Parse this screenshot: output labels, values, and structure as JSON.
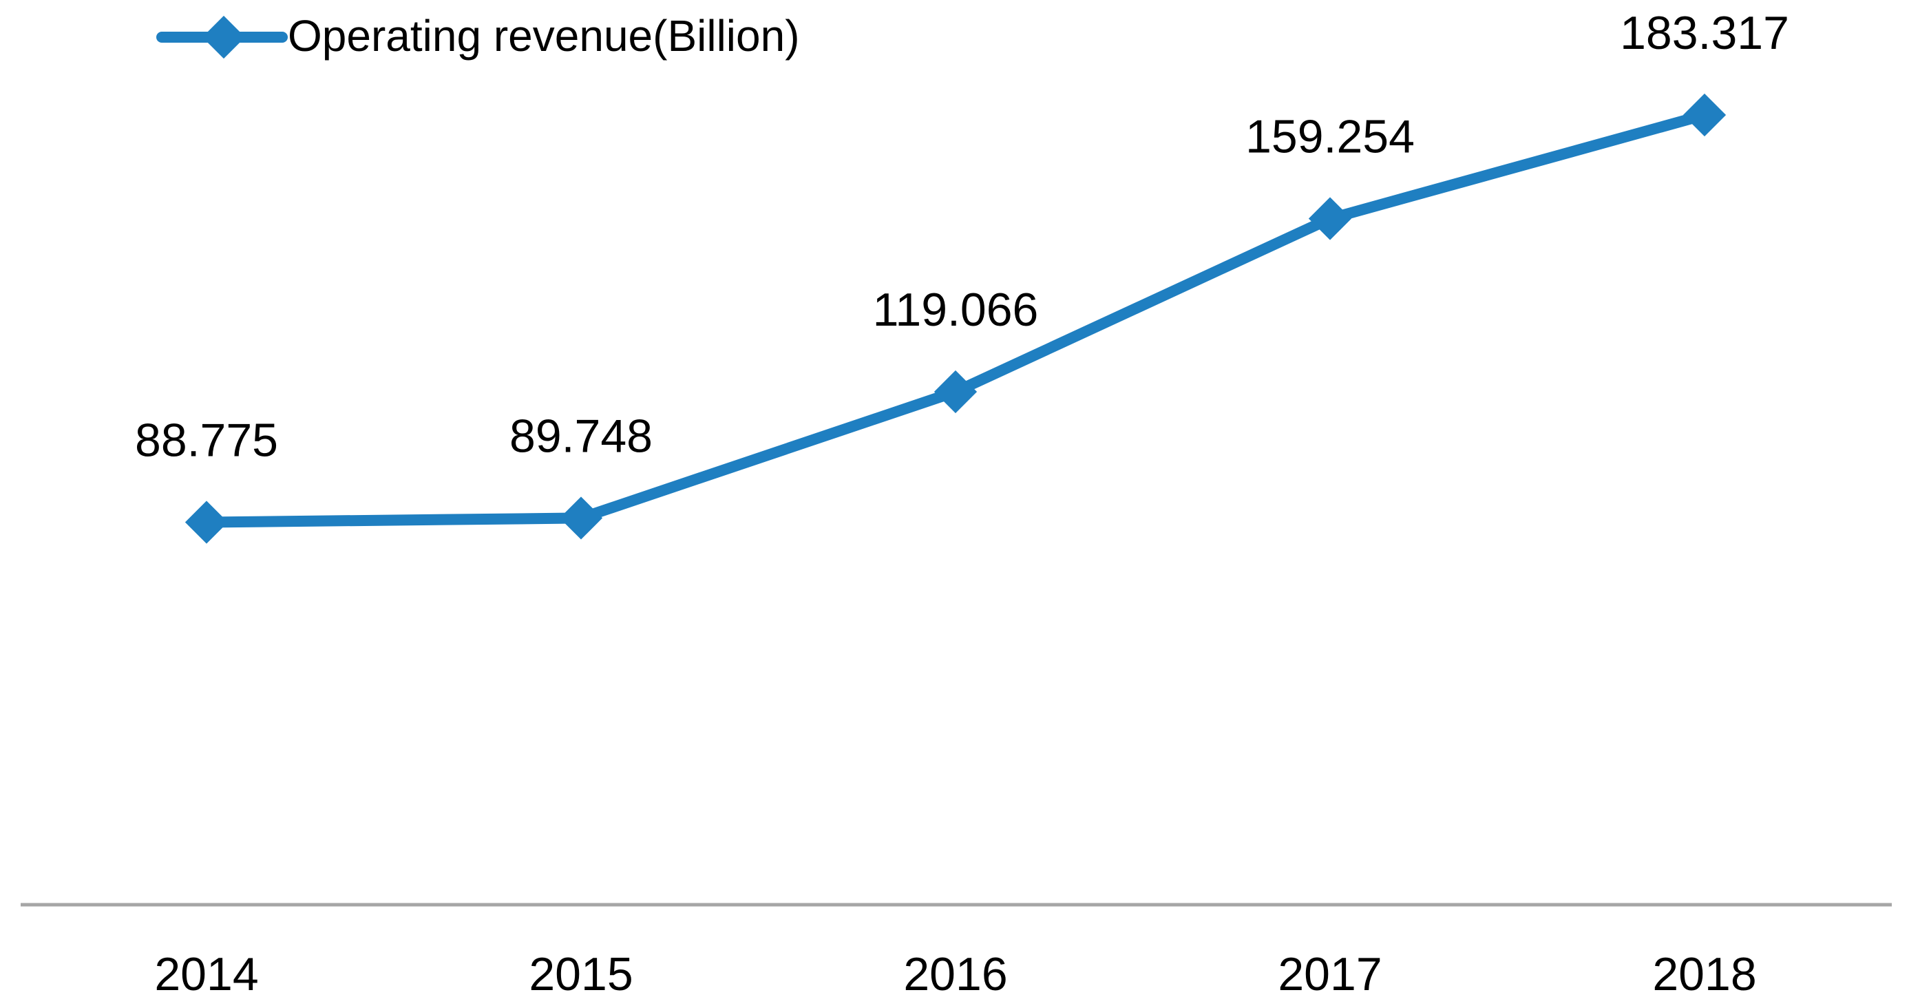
{
  "chart_data": {
    "type": "line",
    "title": "",
    "xlabel": "",
    "ylabel": "",
    "categories": [
      "2014",
      "2015",
      "2016",
      "2017",
      "2018"
    ],
    "series": [
      {
        "name": "Operating revenue(Billion)",
        "values": [
          88.775,
          89.748,
          119.066,
          159.254,
          183.317
        ],
        "labels": [
          "88.775",
          "89.748",
          "119.066",
          "159.254",
          "183.317"
        ]
      }
    ],
    "ylim": [
      0,
      210
    ],
    "grid": false,
    "legend": "top-left",
    "colors": {
      "series": "#1f7fc1",
      "axis": "#a6a6a6",
      "text": "#000000"
    }
  }
}
